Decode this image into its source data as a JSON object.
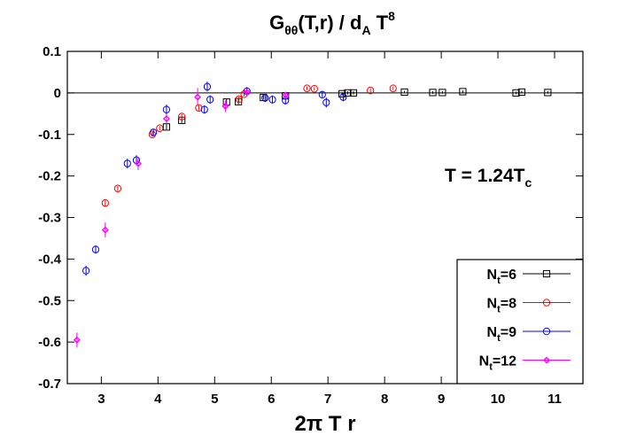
{
  "chart_data": {
    "type": "scatter",
    "title": {
      "main": "G",
      "sub": "θθ",
      "mid": "(T,r) / d",
      "sub2": "A",
      "mid2": " T",
      "sup": "8"
    },
    "xlabel": "2π T r",
    "ylabel": "",
    "xlim": [
      2.4,
      11.5
    ],
    "ylim": [
      -0.7,
      0.1
    ],
    "xticks": [
      3,
      4,
      5,
      6,
      7,
      8,
      9,
      10,
      11
    ],
    "xtick_labels": [
      "3",
      "4",
      "5",
      "6",
      "7",
      "8",
      "9",
      "10",
      "11"
    ],
    "yticks": [
      0.1,
      0,
      -0.1,
      -0.2,
      -0.3,
      -0.4,
      -0.5,
      -0.6,
      -0.7
    ],
    "ytick_labels": [
      "0.1",
      "0",
      "-0.1",
      "-0.2",
      "-0.3",
      "-0.4",
      "-0.5",
      "-0.6",
      "-0.7"
    ],
    "grid": false,
    "zero_line": true,
    "legend_position": "bottom-right",
    "annotation": {
      "text": "T = 1.24T",
      "sub": "c"
    },
    "series": [
      {
        "name": "Nt=6",
        "legend_main": "N",
        "legend_sub": "t",
        "legend_rest": "=6",
        "color": "#000000",
        "marker": "square",
        "points": [
          [
            4.15,
            -0.082,
            0.006
          ],
          [
            4.42,
            -0.066,
            0.006
          ],
          [
            5.21,
            -0.022,
            0.007
          ],
          [
            5.42,
            -0.021,
            0.006
          ],
          [
            5.86,
            -0.011,
            0.005
          ],
          [
            6.25,
            -0.007,
            0.005
          ],
          [
            7.25,
            -0.002,
            0.004
          ],
          [
            7.35,
            0.0,
            0.004
          ],
          [
            7.45,
            0.0,
            0.004
          ],
          [
            8.35,
            0.002,
            0.003
          ],
          [
            8.85,
            0.001,
            0.003
          ],
          [
            9.02,
            0.001,
            0.003
          ],
          [
            9.38,
            0.003,
            0.003
          ],
          [
            10.32,
            0.0,
            0.003
          ],
          [
            10.42,
            0.002,
            0.003
          ],
          [
            10.88,
            0.001,
            0.003
          ]
        ]
      },
      {
        "name": "Nt=8",
        "legend_main": "N",
        "legend_sub": "t",
        "legend_rest": "=8",
        "color": "#ff0000",
        "marker": "circle",
        "points": [
          [
            3.07,
            -0.265,
            0.008
          ],
          [
            3.29,
            -0.23,
            0.006
          ],
          [
            3.9,
            -0.1,
            0.006
          ],
          [
            4.03,
            -0.085,
            0.005
          ],
          [
            4.42,
            -0.057,
            0.006
          ],
          [
            4.72,
            -0.036,
            0.006
          ],
          [
            5.43,
            -0.015,
            0.006
          ],
          [
            5.52,
            -0.003,
            0.005
          ],
          [
            6.63,
            0.011,
            0.004
          ],
          [
            6.76,
            0.01,
            0.004
          ],
          [
            7.75,
            0.006,
            0.004
          ],
          [
            8.15,
            0.011,
            0.004
          ]
        ]
      },
      {
        "name": "Nt=9",
        "legend_main": "N",
        "legend_sub": "t",
        "legend_rest": "=9",
        "color": "#0000ff",
        "marker": "circle",
        "points": [
          [
            2.73,
            -0.428,
            0.012
          ],
          [
            2.9,
            -0.377,
            0.01
          ],
          [
            3.46,
            -0.17,
            0.012
          ],
          [
            3.62,
            -0.162,
            0.012
          ],
          [
            3.92,
            -0.095,
            0.008
          ],
          [
            4.15,
            -0.04,
            0.012
          ],
          [
            4.82,
            -0.04,
            0.01
          ],
          [
            4.87,
            0.015,
            0.012
          ],
          [
            4.92,
            -0.016,
            0.01
          ],
          [
            5.57,
            0.004,
            0.01
          ],
          [
            5.89,
            -0.012,
            0.01
          ],
          [
            6.02,
            -0.016,
            0.01
          ],
          [
            6.25,
            -0.018,
            0.01
          ],
          [
            6.9,
            -0.004,
            0.008
          ],
          [
            6.97,
            -0.023,
            0.012
          ],
          [
            7.27,
            -0.01,
            0.01
          ]
        ]
      },
      {
        "name": "Nt=12",
        "legend_main": "N",
        "legend_sub": "t",
        "legend_rest": "=12",
        "color": "#ff00ff",
        "marker": "diamond",
        "points": [
          [
            2.57,
            -0.595,
            0.018
          ],
          [
            3.07,
            -0.33,
            0.018
          ],
          [
            3.65,
            -0.17,
            0.016
          ],
          [
            4.15,
            -0.062,
            0.012
          ],
          [
            4.7,
            -0.01,
            0.022
          ],
          [
            5.19,
            -0.032,
            0.014
          ],
          [
            5.57,
            0.002,
            0.008
          ],
          [
            6.25,
            -0.005,
            0.006
          ]
        ]
      }
    ]
  }
}
